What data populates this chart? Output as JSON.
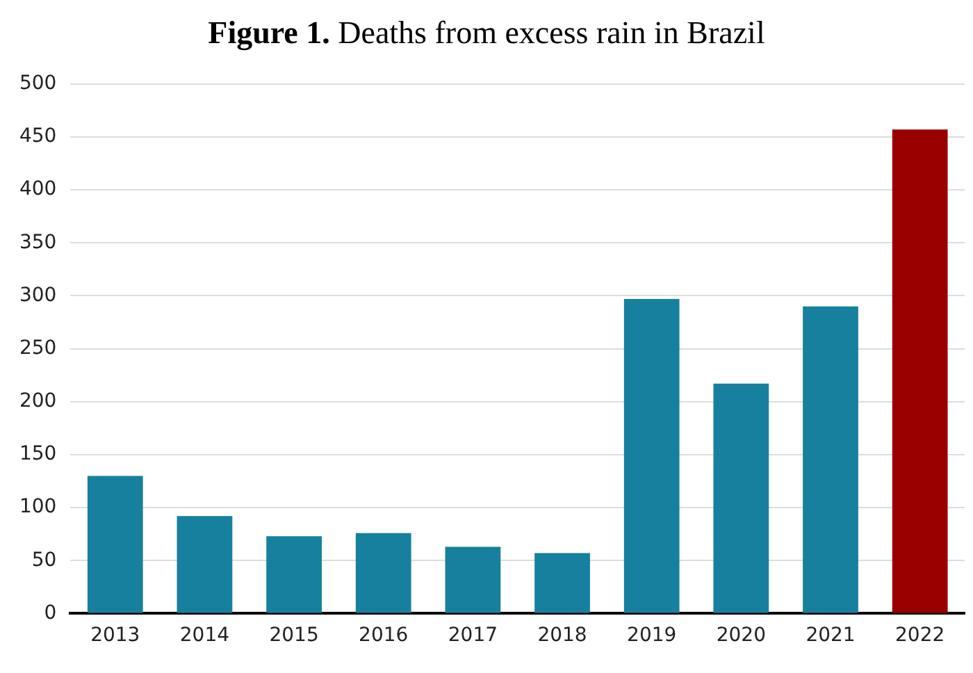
{
  "chart_data": {
    "type": "bar",
    "title": "Figure 1. Deaths from excess rain in Brazil",
    "categories": [
      "2013",
      "2014",
      "2015",
      "2016",
      "2017",
      "2018",
      "2019",
      "2020",
      "2021",
      "2022"
    ],
    "values": [
      130,
      92,
      73,
      76,
      63,
      57,
      297,
      217,
      290,
      457
    ],
    "colors": [
      "#17809f",
      "#17809f",
      "#17809f",
      "#17809f",
      "#17809f",
      "#17809f",
      "#17809f",
      "#17809f",
      "#17809f",
      "#990000"
    ],
    "ylim": [
      0,
      500
    ],
    "yticks": [
      0,
      50,
      100,
      150,
      200,
      250,
      300,
      350,
      400,
      450,
      500
    ],
    "grid": "y",
    "legend": false
  }
}
